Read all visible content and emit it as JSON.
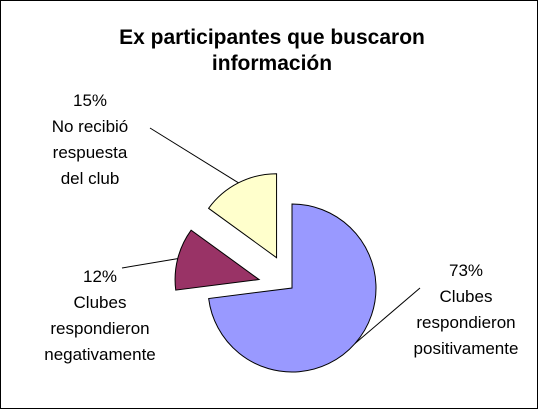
{
  "chart_data": {
    "type": "pie",
    "title": "Ex participantes que buscaron\ninformación",
    "categories": [
      "Clubes\nrespondieron\npositivamente",
      "Clubes\nrespondieron\nnegativamente",
      "No recibió\nrespuesta\ndel club"
    ],
    "values": [
      73,
      12,
      15
    ],
    "value_labels": [
      "73%",
      "12%",
      "15%"
    ],
    "colors": [
      "#9999ff",
      "#993366",
      "#ffffcc"
    ]
  }
}
